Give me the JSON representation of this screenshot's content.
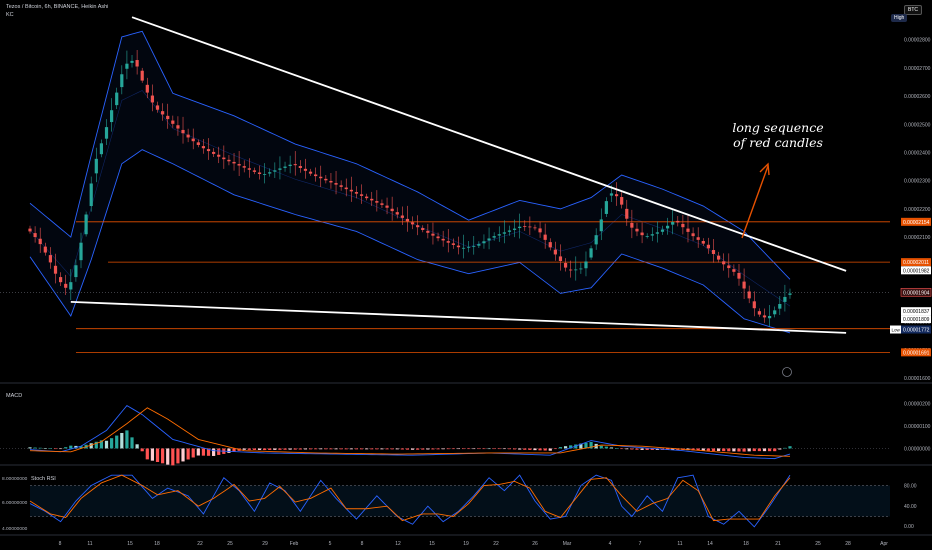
{
  "header": {
    "symbol_line": "Tezos / Bitcoin, 6h, BINANCE, Heikin Ashi",
    "indicator_kc": "KC",
    "currency_button": "BTC",
    "scale_tag": "High"
  },
  "annotation": {
    "line1": "long sequence",
    "line2": "of red candles"
  },
  "watermark_icon": "tradingview-logo-icon",
  "colors": {
    "up": "#26a69a",
    "down": "#ef5350",
    "kc": "#2962ff",
    "trendline": "#ffffff",
    "support": "#e65100",
    "macd": "#2962ff",
    "signal": "#ff6d00",
    "rsi_k": "#2962ff",
    "rsi_d": "#ff6d00"
  },
  "chart_data": [
    {
      "type": "line",
      "title": "Tezos / Bitcoin, 6h, BINANCE, Heikin Ashi",
      "y_axis_ticks": [
        "0.00002800",
        "0.00002700",
        "0.00002600",
        "0.00002500",
        "0.00002400",
        "0.00002300",
        "0.00002200",
        "0.00002100",
        "0.00002000",
        "0.00001900",
        "0.00001800",
        "0.00001700",
        "0.00001600"
      ],
      "ylim": [
        1.6e-05,
        2.87e-05
      ],
      "x_axis_ticks": [
        "8",
        "11",
        "15",
        "18",
        "22",
        "25",
        "29",
        "Feb",
        "5",
        "8",
        "12",
        "15",
        "19",
        "22",
        "26",
        "Mar",
        "4",
        "7",
        "11",
        "14",
        "18",
        "21",
        "25",
        "28",
        "Apr"
      ],
      "price_tags": [
        {
          "label": "0.00002154",
          "value": 2.154e-05,
          "style": "support"
        },
        {
          "label": "0.00002011",
          "value": 2.011e-05,
          "style": "support"
        },
        {
          "label": "0.00001982",
          "value": 1.982e-05,
          "style": "trend"
        },
        {
          "label": "0.00001904",
          "value": 1.904e-05,
          "style": "price"
        },
        {
          "label": "0.00001837",
          "value": 1.837e-05,
          "style": "white"
        },
        {
          "label": "0.00001809",
          "value": 1.809e-05,
          "style": "white"
        },
        {
          "label": "0.00001772",
          "value": 1.772e-05,
          "style": "low"
        },
        {
          "label": "0.00001691",
          "value": 1.691e-05,
          "style": "support"
        }
      ],
      "low_label": "Low",
      "horizontal_levels": [
        2.154e-05,
        2.011e-05,
        1.775e-05,
        1.691e-05
      ],
      "price_path": [
        [
          0,
          2.13e-05
        ],
        [
          2,
          2.09e-05
        ],
        [
          4,
          2.03e-05
        ],
        [
          6,
          1.95e-05
        ],
        [
          8,
          1.91e-05
        ],
        [
          10,
          2.03e-05
        ],
        [
          12,
          2.23e-05
        ],
        [
          13,
          2.35e-05
        ],
        [
          15,
          2.46e-05
        ],
        [
          17,
          2.58e-05
        ],
        [
          19,
          2.71e-05
        ],
        [
          21,
          2.73e-05
        ],
        [
          23,
          2.63e-05
        ],
        [
          25,
          2.56e-05
        ],
        [
          28,
          2.51e-05
        ],
        [
          31,
          2.46e-05
        ],
        [
          34,
          2.42e-05
        ],
        [
          38,
          2.38e-05
        ],
        [
          42,
          2.35e-05
        ],
        [
          46,
          2.32e-05
        ],
        [
          49,
          2.34e-05
        ],
        [
          52,
          2.36e-05
        ],
        [
          56,
          2.32e-05
        ],
        [
          60,
          2.29e-05
        ],
        [
          65,
          2.25e-05
        ],
        [
          70,
          2.21e-05
        ],
        [
          75,
          2.15e-05
        ],
        [
          80,
          2.1e-05
        ],
        [
          85,
          2.06e-05
        ],
        [
          88,
          2.07e-05
        ],
        [
          91,
          2.1e-05
        ],
        [
          94,
          2.12e-05
        ],
        [
          97,
          2.14e-05
        ],
        [
          100,
          2.13e-05
        ],
        [
          103,
          2.05e-05
        ],
        [
          106,
          1.98e-05
        ],
        [
          109,
          1.99e-05
        ],
        [
          112,
          2.13e-05
        ],
        [
          114,
          2.26e-05
        ],
        [
          116,
          2.24e-05
        ],
        [
          118,
          2.14e-05
        ],
        [
          121,
          2.1e-05
        ],
        [
          124,
          2.12e-05
        ],
        [
          127,
          2.16e-05
        ],
        [
          130,
          2.11e-05
        ],
        [
          133,
          2.07e-05
        ],
        [
          136,
          2.01e-05
        ],
        [
          139,
          1.97e-05
        ],
        [
          141,
          1.9e-05
        ],
        [
          143,
          1.83e-05
        ],
        [
          145,
          1.81e-05
        ],
        [
          147,
          1.85e-05
        ],
        [
          149,
          1.9e-05
        ]
      ],
      "x_domain_periods": [
        0,
        149
      ],
      "keltner_upper": [
        [
          0,
          2.22e-05
        ],
        [
          8,
          2.1e-05
        ],
        [
          12,
          2.39e-05
        ],
        [
          18,
          2.81e-05
        ],
        [
          22,
          2.83e-05
        ],
        [
          28,
          2.61e-05
        ],
        [
          40,
          2.53e-05
        ],
        [
          52,
          2.43e-05
        ],
        [
          64,
          2.36e-05
        ],
        [
          76,
          2.26e-05
        ],
        [
          86,
          2.16e-05
        ],
        [
          96,
          2.23e-05
        ],
        [
          104,
          2.2e-05
        ],
        [
          110,
          2.24e-05
        ],
        [
          116,
          2.32e-05
        ],
        [
          124,
          2.27e-05
        ],
        [
          132,
          2.21e-05
        ],
        [
          140,
          2.12e-05
        ],
        [
          149,
          1.95e-05
        ]
      ],
      "keltner_lower": [
        [
          0,
          2.03e-05
        ],
        [
          8,
          1.82e-05
        ],
        [
          12,
          2.02e-05
        ],
        [
          18,
          2.36e-05
        ],
        [
          22,
          2.41e-05
        ],
        [
          28,
          2.36e-05
        ],
        [
          40,
          2.25e-05
        ],
        [
          52,
          2.18e-05
        ],
        [
          64,
          2.12e-05
        ],
        [
          76,
          2.02e-05
        ],
        [
          86,
          1.97e-05
        ],
        [
          96,
          2.01e-05
        ],
        [
          104,
          1.9e-05
        ],
        [
          110,
          1.92e-05
        ],
        [
          116,
          2.04e-05
        ],
        [
          124,
          1.99e-05
        ],
        [
          132,
          1.93e-05
        ],
        [
          140,
          1.81e-05
        ],
        [
          149,
          1.76e-05
        ]
      ],
      "trendlines": [
        {
          "from": [
            20,
            2.88e-05
          ],
          "to": [
            160,
            1.98e-05
          ]
        },
        {
          "from": [
            8,
            1.87e-05
          ],
          "to": [
            160,
            1.76e-05
          ]
        }
      ]
    },
    {
      "type": "line",
      "title": "MACD",
      "y_axis_ticks": [
        "0.00000200",
        "0.00000100",
        "0.00000000"
      ],
      "ylim": [
        -6e-07,
        2.5e-06
      ],
      "series": [
        {
          "name": "macd",
          "values": [
            [
              0,
              -5e-08
            ],
            [
              6,
              -1.5e-07
            ],
            [
              10,
              1e-07
            ],
            [
              15,
              8e-07
            ],
            [
              19,
              1.9e-06
            ],
            [
              22,
              1.5e-06
            ],
            [
              28,
              4e-07
            ],
            [
              36,
              -1e-07
            ],
            [
              46,
              -2e-07
            ],
            [
              60,
              -2.5e-07
            ],
            [
              75,
              -3e-07
            ],
            [
              90,
              -2e-07
            ],
            [
              102,
              -3e-07
            ],
            [
              110,
              3.5e-07
            ],
            [
              116,
              1e-07
            ],
            [
              128,
              -1e-07
            ],
            [
              140,
              -4e-07
            ],
            [
              146,
              -4.5e-07
            ],
            [
              149,
              -2.5e-07
            ]
          ]
        },
        {
          "name": "signal",
          "values": [
            [
              0,
              -1e-07
            ],
            [
              8,
              -1.5e-07
            ],
            [
              14,
              3e-07
            ],
            [
              19,
              1.1e-06
            ],
            [
              23,
              1.8e-06
            ],
            [
              27,
              1.3e-06
            ],
            [
              33,
              4e-07
            ],
            [
              42,
              -1e-07
            ],
            [
              56,
              -2e-07
            ],
            [
              72,
              -2.5e-07
            ],
            [
              90,
              -2e-07
            ],
            [
              104,
              -2e-07
            ],
            [
              112,
              1.5e-07
            ],
            [
              120,
              1e-07
            ],
            [
              132,
              -1e-07
            ],
            [
              142,
              -3e-07
            ],
            [
              149,
              -3.5e-07
            ]
          ]
        }
      ]
    },
    {
      "type": "line",
      "title": "Stoch RSI",
      "y_axis_ticks": [
        "80.00",
        "40.00",
        "0.00"
      ],
      "left_ticks": [
        "8.00000000",
        "6.00000000",
        "4.00000000"
      ],
      "ylim": [
        -10,
        110
      ],
      "bands": [
        80,
        20
      ],
      "series": [
        {
          "name": "k",
          "values": [
            [
              0,
              45
            ],
            [
              3,
              30
            ],
            [
              6,
              10
            ],
            [
              9,
              50
            ],
            [
              12,
              80
            ],
            [
              16,
              100
            ],
            [
              20,
              100
            ],
            [
              24,
              55
            ],
            [
              27,
              75
            ],
            [
              31,
              60
            ],
            [
              34,
              25
            ],
            [
              38,
              95
            ],
            [
              41,
              70
            ],
            [
              44,
              30
            ],
            [
              47,
              85
            ],
            [
              50,
              70
            ],
            [
              53,
              30
            ],
            [
              57,
              90
            ],
            [
              60,
              55
            ],
            [
              64,
              15
            ],
            [
              68,
              60
            ],
            [
              72,
              20
            ],
            [
              75,
              5
            ],
            [
              78,
              40
            ],
            [
              81,
              10
            ],
            [
              84,
              30
            ],
            [
              87,
              60
            ],
            [
              90,
              95
            ],
            [
              93,
              70
            ],
            [
              96,
              100
            ],
            [
              99,
              50
            ],
            [
              102,
              15
            ],
            [
              105,
              20
            ],
            [
              108,
              80
            ],
            [
              111,
              100
            ],
            [
              114,
              90
            ],
            [
              116,
              40
            ],
            [
              118,
              20
            ],
            [
              121,
              60
            ],
            [
              124,
              30
            ],
            [
              127,
              95
            ],
            [
              130,
              100
            ],
            [
              133,
              20
            ],
            [
              136,
              5
            ],
            [
              139,
              30
            ],
            [
              142,
              0
            ],
            [
              145,
              40
            ],
            [
              149,
              100
            ]
          ]
        },
        {
          "name": "d",
          "values": [
            [
              0,
              50
            ],
            [
              4,
              25
            ],
            [
              7,
              18
            ],
            [
              10,
              55
            ],
            [
              14,
              85
            ],
            [
              18,
              100
            ],
            [
              22,
              80
            ],
            [
              25,
              62
            ],
            [
              29,
              70
            ],
            [
              33,
              40
            ],
            [
              36,
              55
            ],
            [
              40,
              82
            ],
            [
              43,
              50
            ],
            [
              46,
              55
            ],
            [
              49,
              78
            ],
            [
              52,
              48
            ],
            [
              55,
              55
            ],
            [
              59,
              75
            ],
            [
              62,
              35
            ],
            [
              66,
              35
            ],
            [
              70,
              40
            ],
            [
              73,
              12
            ],
            [
              77,
              25
            ],
            [
              80,
              25
            ],
            [
              83,
              20
            ],
            [
              86,
              45
            ],
            [
              89,
              80
            ],
            [
              92,
              82
            ],
            [
              95,
              88
            ],
            [
              98,
              75
            ],
            [
              101,
              30
            ],
            [
              104,
              18
            ],
            [
              107,
              55
            ],
            [
              110,
              92
            ],
            [
              113,
              95
            ],
            [
              116,
              60
            ],
            [
              119,
              30
            ],
            [
              122,
              45
            ],
            [
              125,
              55
            ],
            [
              128,
              90
            ],
            [
              131,
              70
            ],
            [
              134,
              12
            ],
            [
              137,
              15
            ],
            [
              140,
              15
            ],
            [
              143,
              15
            ],
            [
              146,
              60
            ],
            [
              149,
              95
            ]
          ]
        }
      ]
    }
  ]
}
